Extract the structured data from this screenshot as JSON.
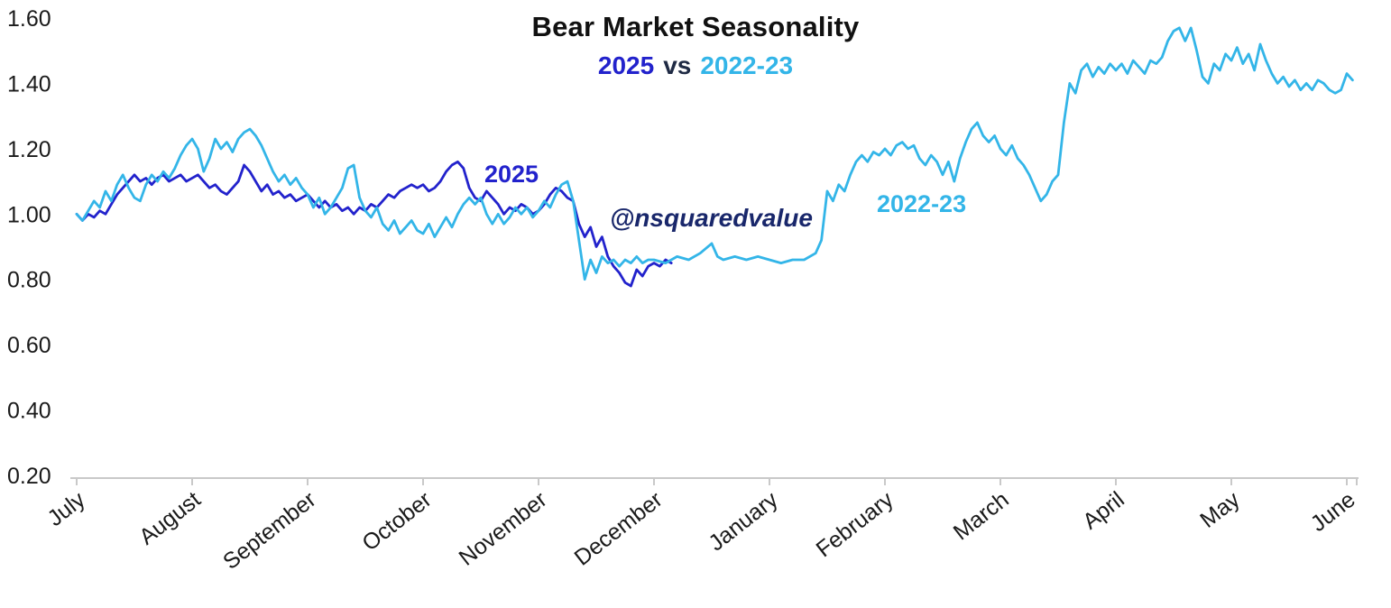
{
  "title": "Bear Market Seasonality",
  "subtitle": {
    "year_2025": "2025",
    "vs": "vs",
    "year_2022": "2022-23"
  },
  "watermark": "@nsquaredvalue",
  "labels": {
    "series_2025": "2025",
    "series_2022": "2022-23"
  },
  "colors": {
    "series_2025": "#2222cc",
    "series_2022": "#33b5e8",
    "axis": "#c9c9c9",
    "text": "#1a1a1a",
    "watermark": "#19276b"
  },
  "chart_data": {
    "type": "line",
    "title": "Bear Market Seasonality",
    "subtitle": "2025 vs 2022-23",
    "xlabel": "",
    "ylabel": "",
    "grid": false,
    "legend_position": "inline-labels",
    "x_unit": "months since July (0 = July, 11 = June)",
    "categories": [
      "July",
      "August",
      "September",
      "October",
      "November",
      "December",
      "January",
      "February",
      "March",
      "April",
      "May",
      "June"
    ],
    "y_axis": {
      "min": 0.2,
      "max": 1.6,
      "ticks": [
        "1.60",
        "1.40",
        "1.20",
        "1.00",
        "0.80",
        "0.60",
        "0.40",
        "0.20"
      ]
    },
    "ylim": [
      0.2,
      1.6
    ],
    "series": [
      {
        "name": "2025",
        "color": "#2222cc",
        "points": [
          [
            0,
            1.0
          ],
          [
            0.05,
            0.98
          ],
          [
            0.1,
            1.0
          ],
          [
            0.15,
            0.99
          ],
          [
            0.2,
            1.01
          ],
          [
            0.25,
            1.0
          ],
          [
            0.3,
            1.03
          ],
          [
            0.35,
            1.06
          ],
          [
            0.4,
            1.08
          ],
          [
            0.45,
            1.1
          ],
          [
            0.5,
            1.12
          ],
          [
            0.55,
            1.1
          ],
          [
            0.6,
            1.11
          ],
          [
            0.65,
            1.09
          ],
          [
            0.7,
            1.11
          ],
          [
            0.75,
            1.12
          ],
          [
            0.8,
            1.1
          ],
          [
            0.85,
            1.11
          ],
          [
            0.9,
            1.12
          ],
          [
            0.95,
            1.1
          ],
          [
            1.0,
            1.11
          ],
          [
            1.05,
            1.12
          ],
          [
            1.1,
            1.1
          ],
          [
            1.15,
            1.08
          ],
          [
            1.2,
            1.09
          ],
          [
            1.25,
            1.07
          ],
          [
            1.3,
            1.06
          ],
          [
            1.35,
            1.08
          ],
          [
            1.4,
            1.1
          ],
          [
            1.45,
            1.15
          ],
          [
            1.5,
            1.13
          ],
          [
            1.55,
            1.1
          ],
          [
            1.6,
            1.07
          ],
          [
            1.65,
            1.09
          ],
          [
            1.7,
            1.06
          ],
          [
            1.75,
            1.07
          ],
          [
            1.8,
            1.05
          ],
          [
            1.85,
            1.06
          ],
          [
            1.9,
            1.04
          ],
          [
            1.95,
            1.05
          ],
          [
            2.0,
            1.06
          ],
          [
            2.05,
            1.04
          ],
          [
            2.1,
            1.02
          ],
          [
            2.15,
            1.04
          ],
          [
            2.2,
            1.02
          ],
          [
            2.25,
            1.03
          ],
          [
            2.3,
            1.01
          ],
          [
            2.35,
            1.02
          ],
          [
            2.4,
            1.0
          ],
          [
            2.45,
            1.02
          ],
          [
            2.5,
            1.01
          ],
          [
            2.55,
            1.03
          ],
          [
            2.6,
            1.02
          ],
          [
            2.65,
            1.04
          ],
          [
            2.7,
            1.06
          ],
          [
            2.75,
            1.05
          ],
          [
            2.8,
            1.07
          ],
          [
            2.85,
            1.08
          ],
          [
            2.9,
            1.09
          ],
          [
            2.95,
            1.08
          ],
          [
            3.0,
            1.09
          ],
          [
            3.05,
            1.07
          ],
          [
            3.1,
            1.08
          ],
          [
            3.15,
            1.1
          ],
          [
            3.2,
            1.13
          ],
          [
            3.25,
            1.15
          ],
          [
            3.3,
            1.16
          ],
          [
            3.35,
            1.14
          ],
          [
            3.4,
            1.08
          ],
          [
            3.45,
            1.05
          ],
          [
            3.5,
            1.04
          ],
          [
            3.55,
            1.07
          ],
          [
            3.6,
            1.05
          ],
          [
            3.65,
            1.03
          ],
          [
            3.7,
            1.0
          ],
          [
            3.75,
            1.02
          ],
          [
            3.8,
            1.01
          ],
          [
            3.85,
            1.03
          ],
          [
            3.9,
            1.02
          ],
          [
            3.95,
            1.0
          ],
          [
            4.0,
            1.01
          ],
          [
            4.05,
            1.03
          ],
          [
            4.1,
            1.06
          ],
          [
            4.15,
            1.08
          ],
          [
            4.2,
            1.07
          ],
          [
            4.25,
            1.05
          ],
          [
            4.3,
            1.04
          ],
          [
            4.35,
            0.97
          ],
          [
            4.4,
            0.93
          ],
          [
            4.45,
            0.96
          ],
          [
            4.5,
            0.9
          ],
          [
            4.55,
            0.93
          ],
          [
            4.6,
            0.87
          ],
          [
            4.65,
            0.84
          ],
          [
            4.7,
            0.82
          ],
          [
            4.75,
            0.79
          ],
          [
            4.8,
            0.78
          ],
          [
            4.85,
            0.83
          ],
          [
            4.9,
            0.81
          ],
          [
            4.95,
            0.84
          ],
          [
            5.0,
            0.85
          ],
          [
            5.05,
            0.84
          ],
          [
            5.1,
            0.86
          ],
          [
            5.15,
            0.85
          ]
        ]
      },
      {
        "name": "2022-23",
        "color": "#33b5e8",
        "points": [
          [
            0,
            1.0
          ],
          [
            0.05,
            0.98
          ],
          [
            0.1,
            1.01
          ],
          [
            0.15,
            1.04
          ],
          [
            0.2,
            1.02
          ],
          [
            0.25,
            1.07
          ],
          [
            0.3,
            1.04
          ],
          [
            0.35,
            1.09
          ],
          [
            0.4,
            1.12
          ],
          [
            0.45,
            1.08
          ],
          [
            0.5,
            1.05
          ],
          [
            0.55,
            1.04
          ],
          [
            0.6,
            1.09
          ],
          [
            0.65,
            1.12
          ],
          [
            0.7,
            1.1
          ],
          [
            0.75,
            1.13
          ],
          [
            0.8,
            1.11
          ],
          [
            0.85,
            1.14
          ],
          [
            0.9,
            1.18
          ],
          [
            0.95,
            1.21
          ],
          [
            1.0,
            1.23
          ],
          [
            1.05,
            1.2
          ],
          [
            1.1,
            1.13
          ],
          [
            1.15,
            1.17
          ],
          [
            1.2,
            1.23
          ],
          [
            1.25,
            1.2
          ],
          [
            1.3,
            1.22
          ],
          [
            1.35,
            1.19
          ],
          [
            1.4,
            1.23
          ],
          [
            1.45,
            1.25
          ],
          [
            1.5,
            1.26
          ],
          [
            1.55,
            1.24
          ],
          [
            1.6,
            1.21
          ],
          [
            1.65,
            1.17
          ],
          [
            1.7,
            1.13
          ],
          [
            1.75,
            1.1
          ],
          [
            1.8,
            1.12
          ],
          [
            1.85,
            1.09
          ],
          [
            1.9,
            1.11
          ],
          [
            1.95,
            1.08
          ],
          [
            2.0,
            1.06
          ],
          [
            2.05,
            1.02
          ],
          [
            2.1,
            1.05
          ],
          [
            2.15,
            1.0
          ],
          [
            2.2,
            1.02
          ],
          [
            2.25,
            1.05
          ],
          [
            2.3,
            1.08
          ],
          [
            2.35,
            1.14
          ],
          [
            2.4,
            1.15
          ],
          [
            2.45,
            1.05
          ],
          [
            2.5,
            1.01
          ],
          [
            2.55,
            0.99
          ],
          [
            2.6,
            1.02
          ],
          [
            2.65,
            0.97
          ],
          [
            2.7,
            0.95
          ],
          [
            2.75,
            0.98
          ],
          [
            2.8,
            0.94
          ],
          [
            2.85,
            0.96
          ],
          [
            2.9,
            0.98
          ],
          [
            2.95,
            0.95
          ],
          [
            3.0,
            0.94
          ],
          [
            3.05,
            0.97
          ],
          [
            3.1,
            0.93
          ],
          [
            3.15,
            0.96
          ],
          [
            3.2,
            0.99
          ],
          [
            3.25,
            0.96
          ],
          [
            3.3,
            1.0
          ],
          [
            3.35,
            1.03
          ],
          [
            3.4,
            1.05
          ],
          [
            3.45,
            1.03
          ],
          [
            3.5,
            1.05
          ],
          [
            3.55,
            1.0
          ],
          [
            3.6,
            0.97
          ],
          [
            3.65,
            1.0
          ],
          [
            3.7,
            0.97
          ],
          [
            3.75,
            0.99
          ],
          [
            3.8,
            1.02
          ],
          [
            3.85,
            1.0
          ],
          [
            3.9,
            1.02
          ],
          [
            3.95,
            0.99
          ],
          [
            4.0,
            1.01
          ],
          [
            4.05,
            1.04
          ],
          [
            4.1,
            1.02
          ],
          [
            4.15,
            1.06
          ],
          [
            4.2,
            1.09
          ],
          [
            4.25,
            1.1
          ],
          [
            4.3,
            1.04
          ],
          [
            4.35,
            0.92
          ],
          [
            4.4,
            0.8
          ],
          [
            4.45,
            0.86
          ],
          [
            4.5,
            0.82
          ],
          [
            4.55,
            0.87
          ],
          [
            4.6,
            0.85
          ],
          [
            4.65,
            0.86
          ],
          [
            4.7,
            0.84
          ],
          [
            4.75,
            0.86
          ],
          [
            4.8,
            0.85
          ],
          [
            4.85,
            0.87
          ],
          [
            4.9,
            0.85
          ],
          [
            4.95,
            0.86
          ],
          [
            5.0,
            0.86
          ],
          [
            5.1,
            0.85
          ],
          [
            5.2,
            0.87
          ],
          [
            5.3,
            0.86
          ],
          [
            5.4,
            0.88
          ],
          [
            5.5,
            0.91
          ],
          [
            5.55,
            0.87
          ],
          [
            5.6,
            0.86
          ],
          [
            5.7,
            0.87
          ],
          [
            5.8,
            0.86
          ],
          [
            5.9,
            0.87
          ],
          [
            6.0,
            0.86
          ],
          [
            6.1,
            0.85
          ],
          [
            6.2,
            0.86
          ],
          [
            6.3,
            0.86
          ],
          [
            6.4,
            0.88
          ],
          [
            6.45,
            0.92
          ],
          [
            6.5,
            1.07
          ],
          [
            6.55,
            1.04
          ],
          [
            6.6,
            1.09
          ],
          [
            6.65,
            1.07
          ],
          [
            6.7,
            1.12
          ],
          [
            6.75,
            1.16
          ],
          [
            6.8,
            1.18
          ],
          [
            6.85,
            1.16
          ],
          [
            6.9,
            1.19
          ],
          [
            6.95,
            1.18
          ],
          [
            7.0,
            1.2
          ],
          [
            7.05,
            1.18
          ],
          [
            7.1,
            1.21
          ],
          [
            7.15,
            1.22
          ],
          [
            7.2,
            1.2
          ],
          [
            7.25,
            1.21
          ],
          [
            7.3,
            1.17
          ],
          [
            7.35,
            1.15
          ],
          [
            7.4,
            1.18
          ],
          [
            7.45,
            1.16
          ],
          [
            7.5,
            1.12
          ],
          [
            7.55,
            1.16
          ],
          [
            7.6,
            1.1
          ],
          [
            7.65,
            1.17
          ],
          [
            7.7,
            1.22
          ],
          [
            7.75,
            1.26
          ],
          [
            7.8,
            1.28
          ],
          [
            7.85,
            1.24
          ],
          [
            7.9,
            1.22
          ],
          [
            7.95,
            1.24
          ],
          [
            8.0,
            1.2
          ],
          [
            8.05,
            1.18
          ],
          [
            8.1,
            1.21
          ],
          [
            8.15,
            1.17
          ],
          [
            8.2,
            1.15
          ],
          [
            8.25,
            1.12
          ],
          [
            8.3,
            1.08
          ],
          [
            8.35,
            1.04
          ],
          [
            8.4,
            1.06
          ],
          [
            8.45,
            1.1
          ],
          [
            8.5,
            1.12
          ],
          [
            8.55,
            1.28
          ],
          [
            8.6,
            1.4
          ],
          [
            8.65,
            1.37
          ],
          [
            8.7,
            1.44
          ],
          [
            8.75,
            1.46
          ],
          [
            8.8,
            1.42
          ],
          [
            8.85,
            1.45
          ],
          [
            8.9,
            1.43
          ],
          [
            8.95,
            1.46
          ],
          [
            9.0,
            1.44
          ],
          [
            9.05,
            1.46
          ],
          [
            9.1,
            1.43
          ],
          [
            9.15,
            1.47
          ],
          [
            9.2,
            1.45
          ],
          [
            9.25,
            1.43
          ],
          [
            9.3,
            1.47
          ],
          [
            9.35,
            1.46
          ],
          [
            9.4,
            1.48
          ],
          [
            9.45,
            1.53
          ],
          [
            9.5,
            1.56
          ],
          [
            9.55,
            1.57
          ],
          [
            9.6,
            1.53
          ],
          [
            9.65,
            1.57
          ],
          [
            9.7,
            1.5
          ],
          [
            9.75,
            1.42
          ],
          [
            9.8,
            1.4
          ],
          [
            9.85,
            1.46
          ],
          [
            9.9,
            1.44
          ],
          [
            9.95,
            1.49
          ],
          [
            10.0,
            1.47
          ],
          [
            10.05,
            1.51
          ],
          [
            10.1,
            1.46
          ],
          [
            10.15,
            1.49
          ],
          [
            10.2,
            1.44
          ],
          [
            10.25,
            1.52
          ],
          [
            10.3,
            1.47
          ],
          [
            10.35,
            1.43
          ],
          [
            10.4,
            1.4
          ],
          [
            10.45,
            1.42
          ],
          [
            10.5,
            1.39
          ],
          [
            10.55,
            1.41
          ],
          [
            10.6,
            1.38
          ],
          [
            10.65,
            1.4
          ],
          [
            10.7,
            1.38
          ],
          [
            10.75,
            1.41
          ],
          [
            10.8,
            1.4
          ],
          [
            10.85,
            1.38
          ],
          [
            10.9,
            1.37
          ],
          [
            10.95,
            1.38
          ],
          [
            11.0,
            1.43
          ],
          [
            11.05,
            1.41
          ]
        ]
      }
    ]
  }
}
